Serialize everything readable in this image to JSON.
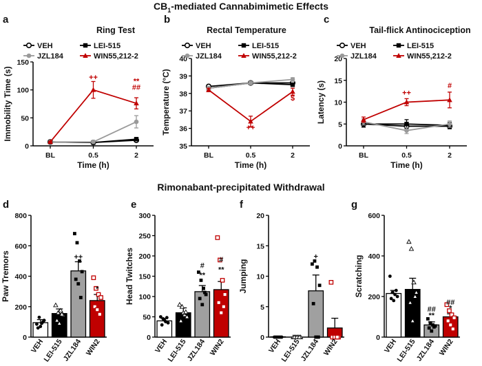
{
  "figure": {
    "title_main": "CB",
    "title_sub": "1",
    "title_rest": "-mediated Cannabimimetic Effects",
    "section2_title": "Rimonabant-precipitated Withdrawal"
  },
  "colors": {
    "VEH": "#000000",
    "JZL184": "#9a9a9a",
    "LEI-515": "#000000",
    "WIN55,212-2": "#c00000",
    "bar_VEH": "#ffffff",
    "bar_LEI": "#000000",
    "bar_JZL": "#a0a0a0",
    "bar_WIN": "#c00000"
  },
  "chart_data": [
    {
      "id": "a",
      "type": "line",
      "title": "Ring Test",
      "xlabel": "Time (h)",
      "ylabel": "Immobility Time (s)",
      "x": [
        "BL",
        "0.5",
        "2"
      ],
      "ylim": [
        0,
        150
      ],
      "yticks": [
        0,
        50,
        100,
        150
      ],
      "legend": [
        "VEH",
        "LEI-515",
        "JZL184",
        "WIN55,212-2"
      ],
      "series": [
        {
          "name": "VEH",
          "values": [
            7,
            6,
            10
          ],
          "err": [
            1,
            1,
            2
          ]
        },
        {
          "name": "LEI-515",
          "values": [
            7,
            6,
            12
          ],
          "err": [
            1,
            1,
            2
          ]
        },
        {
          "name": "JZL184",
          "values": [
            7,
            7,
            43
          ],
          "err": [
            1,
            2,
            11
          ]
        },
        {
          "name": "WIN55,212-2",
          "values": [
            7,
            100,
            76
          ],
          "err": [
            1,
            15,
            10
          ]
        }
      ],
      "annotations": [
        {
          "x": "0.5",
          "y": 118,
          "text": "++"
        },
        {
          "x": "2",
          "y": 100,
          "text": "##"
        },
        {
          "x": "2",
          "y": 111,
          "text": "**"
        }
      ]
    },
    {
      "id": "b",
      "type": "line",
      "title": "Rectal Temperature",
      "xlabel": "Time (h)",
      "ylabel": "Temperature (°C)",
      "x": [
        "BL",
        "0.5",
        "2"
      ],
      "ylim": [
        35,
        40
      ],
      "yticks": [
        35,
        36,
        37,
        38,
        39,
        40
      ],
      "legend": [
        "VEH",
        "LEI-515",
        "JZL184",
        "WIN55,212-2"
      ],
      "series": [
        {
          "name": "VEH",
          "values": [
            38.4,
            38.6,
            38.6
          ],
          "err": [
            0.1,
            0.1,
            0.1
          ]
        },
        {
          "name": "LEI-515",
          "values": [
            38.3,
            38.6,
            38.5
          ],
          "err": [
            0.1,
            0.1,
            0.1
          ]
        },
        {
          "name": "JZL184",
          "values": [
            38.3,
            38.6,
            38.8
          ],
          "err": [
            0.1,
            0.1,
            0.1
          ]
        },
        {
          "name": "WIN55,212-2",
          "values": [
            38.2,
            36.4,
            38.1
          ],
          "err": [
            0.1,
            0.3,
            0.2
          ]
        }
      ],
      "annotations": [
        {
          "x": "0.5",
          "y": 35.9,
          "text": "++"
        },
        {
          "x": "2",
          "y": 37.6,
          "text": "$"
        }
      ]
    },
    {
      "id": "c",
      "type": "line",
      "title": "Tail-flick Antinociception",
      "xlabel": "Time (h)",
      "ylabel": "Latency (s)",
      "x": [
        "BL",
        "0.5",
        "2"
      ],
      "ylim": [
        0,
        20
      ],
      "yticks": [
        0,
        5,
        10,
        15,
        20
      ],
      "legend": [
        "VEH",
        "LEI-515",
        "JZL184",
        "WIN55,212-2"
      ],
      "series": [
        {
          "name": "VEH",
          "values": [
            5,
            4.5,
            4.5
          ],
          "err": [
            0.7,
            0.8,
            0.6
          ]
        },
        {
          "name": "LEI-515",
          "values": [
            5,
            5,
            4.7
          ],
          "err": [
            0.7,
            1,
            0.7
          ]
        },
        {
          "name": "JZL184",
          "values": [
            5.5,
            3.5,
            5
          ],
          "err": [
            0.7,
            0.7,
            0.7
          ]
        },
        {
          "name": "WIN55,212-2",
          "values": [
            6,
            10,
            10.5
          ],
          "err": [
            0.6,
            0.8,
            1.8
          ]
        }
      ],
      "annotations": [
        {
          "x": "0.5",
          "y": 11.6,
          "text": "++"
        },
        {
          "x": "2",
          "y": 13.2,
          "text": "#"
        }
      ]
    },
    {
      "id": "d",
      "type": "bar",
      "ylabel": "Paw Tremors",
      "categories": [
        "VEH",
        "LEI-515",
        "JZL184",
        "WIN2"
      ],
      "values": [
        95,
        155,
        435,
        240
      ],
      "err": [
        20,
        30,
        60,
        40
      ],
      "ylim": [
        0,
        800
      ],
      "yticks": [
        0,
        200,
        400,
        600,
        800
      ],
      "points": [
        [
          85,
          130,
          90,
          110,
          60,
          70,
          100
        ],
        [
          210,
          160,
          175,
          145,
          110,
          90,
          150
        ],
        [
          680,
          620,
          500,
          430,
          380,
          350,
          260
        ],
        [
          390,
          320,
          280,
          260,
          200,
          180,
          150
        ]
      ],
      "annotations": [
        {
          "cat": "JZL184",
          "y": 510,
          "text": "++"
        },
        {
          "cat": "WIN2",
          "y": 300,
          "text": "*"
        }
      ]
    },
    {
      "id": "e",
      "type": "bar",
      "ylabel": "Head Twitches",
      "categories": [
        "VEH",
        "LEI-515",
        "JZL184",
        "WIN2"
      ],
      "values": [
        40,
        60,
        112,
        117
      ],
      "err": [
        6,
        12,
        15,
        20
      ],
      "ylim": [
        0,
        300
      ],
      "yticks": [
        0,
        50,
        100,
        150,
        200,
        250,
        300
      ],
      "points": [
        [
          50,
          45,
          38,
          35,
          30,
          42,
          48
        ],
        [
          80,
          75,
          55,
          50,
          40,
          60,
          62
        ],
        [
          160,
          140,
          120,
          105,
          95,
          80,
          110
        ],
        [
          245,
          190,
          140,
          105,
          85,
          60,
          75
        ]
      ],
      "annotations": [
        {
          "cat": "JZL184",
          "y": 147,
          "text": "**"
        },
        {
          "cat": "JZL184",
          "y": 170,
          "text": "#"
        },
        {
          "cat": "WIN2",
          "y": 160,
          "text": "**"
        },
        {
          "cat": "WIN2",
          "y": 185,
          "text": "#"
        }
      ]
    },
    {
      "id": "f",
      "type": "bar",
      "ylabel": "Jumping",
      "categories": [
        "VEH",
        "LEI-515",
        "JZL184",
        "WIN2"
      ],
      "values": [
        0.05,
        0,
        7.6,
        1.5
      ],
      "err": [
        0.05,
        0,
        2.6,
        1.6
      ],
      "ylim": [
        0,
        20
      ],
      "yticks": [
        0,
        5,
        10,
        15,
        20
      ],
      "points": [
        [
          0,
          0,
          0,
          0,
          0,
          0,
          0
        ],
        [
          0,
          0,
          0,
          0,
          0,
          0,
          0
        ],
        [
          12,
          12.5,
          11.5,
          8.5,
          5.5,
          0,
          0
        ],
        [
          9,
          0,
          0,
          0,
          0,
          0,
          0
        ]
      ],
      "annotations": [
        {
          "cat": "JZL184",
          "y": 12.8,
          "text": "+"
        }
      ]
    },
    {
      "id": "g",
      "type": "bar",
      "ylabel": "Scratching",
      "categories": [
        "VEH",
        "LEI-515",
        "JZL184",
        "WIN2"
      ],
      "values": [
        215,
        235,
        60,
        100
      ],
      "err": [
        15,
        55,
        15,
        15
      ],
      "ylim": [
        0,
        600
      ],
      "yticks": [
        0,
        200,
        400,
        600
      ],
      "points": [
        [
          300,
          220,
          210,
          200,
          190,
          180,
          230
        ],
        [
          470,
          435,
          270,
          220,
          170,
          80,
          200
        ],
        [
          90,
          70,
          60,
          55,
          45,
          30,
          50
        ],
        [
          160,
          130,
          110,
          95,
          80,
          60,
          40
        ]
      ],
      "annotations": [
        {
          "cat": "JZL184",
          "y": 95,
          "text": "**"
        },
        {
          "cat": "JZL184",
          "y": 125,
          "text": "##"
        },
        {
          "cat": "WIN2",
          "y": 130,
          "text": "*"
        },
        {
          "cat": "WIN2",
          "y": 160,
          "text": "##"
        }
      ]
    }
  ]
}
